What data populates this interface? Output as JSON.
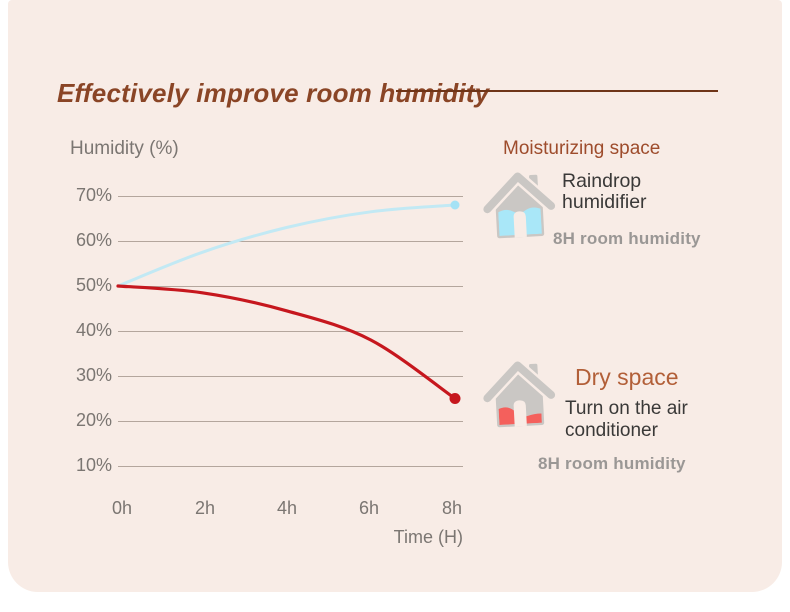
{
  "title": {
    "text": "Effectively improve room humidity"
  },
  "colors": {
    "page_bg": "#ffffff",
    "card_bg": "#f8ece6",
    "title": "#8a4526",
    "rule": "#6f3518",
    "grid": "#b4a69d",
    "axis_text": "#7b7672",
    "body_text": "#3a3938",
    "caption_text": "#9a9795",
    "heading_top": "#9e4c2c",
    "heading_bottom": "#b25f38",
    "house_gray": "#cac7c4",
    "blue_line": "#c2e9f4",
    "blue_dot": "#a5e2f5",
    "red_line": "#c6171e",
    "blue_fill": "#a9e7f8",
    "red_fill": "#f4605c"
  },
  "chart_data": {
    "type": "line",
    "title": "Effectively improve room humidity",
    "ylabel": "Humidity (%)",
    "xlabel": "Time (H)",
    "x": [
      0,
      2,
      4,
      6,
      8
    ],
    "x_tick_labels": [
      "0h",
      "2h",
      "4h",
      "6h",
      "8h"
    ],
    "y_tick_labels": [
      "70%",
      "60%",
      "50%",
      "40%",
      "30%",
      "20%",
      "10%"
    ],
    "y_tick_values": [
      70,
      60,
      50,
      40,
      30,
      20,
      10
    ],
    "ylim": [
      10,
      70
    ],
    "grid": "horizontal",
    "legend_position": "right",
    "series": [
      {
        "name": "Raindrop humidifier (Moisturizing space)",
        "slug": "humidifier",
        "color": "#c2e9f4",
        "dot_color": "#a5e2f5",
        "stroke_width": 3,
        "dot_radius": 4.5,
        "values": [
          50,
          57.5,
          63,
          66.5,
          68
        ]
      },
      {
        "name": "Air conditioner (Dry space)",
        "slug": "air-conditioner",
        "color": "#c6171e",
        "dot_color": "#c6171e",
        "stroke_width": 3.2,
        "dot_radius": 5.5,
        "values": [
          50,
          48.5,
          44.5,
          38,
          25
        ]
      }
    ]
  },
  "moisturizing": {
    "heading": "Moisturizing space",
    "product": "Raindrop humidifier",
    "caption": "8H room humidity"
  },
  "dry": {
    "heading": "Dry space",
    "action": "Turn on the air conditioner",
    "caption": "8H room humidity"
  }
}
